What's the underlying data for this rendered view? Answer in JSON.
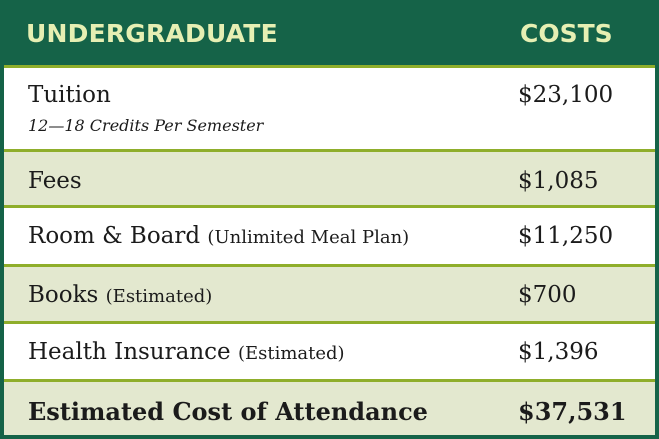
{
  "header": {
    "left": "UNDERGRADUATE",
    "right": "COSTS"
  },
  "rows": [
    {
      "label": "Tuition",
      "sub": "12—18 Credits Per Semester",
      "note": "",
      "value": "$23,100"
    },
    {
      "label": "Fees",
      "note": "",
      "value": "$1,085"
    },
    {
      "label": "Room & Board",
      "note": "(Unlimited Meal Plan)",
      "value": "$11,250"
    },
    {
      "label": "Books",
      "note": "(Estimated)",
      "value": "$700"
    },
    {
      "label": "Health Insurance",
      "note": "(Estimated)",
      "value": "$1,396"
    }
  ],
  "total": {
    "label": "Estimated Cost of Attendance",
    "value": "$37,531"
  },
  "colors": {
    "header_bg": "#156348",
    "header_text": "#e6efb3",
    "row_divider": "#8fae2b",
    "tint_row": "#e3e8cf"
  }
}
